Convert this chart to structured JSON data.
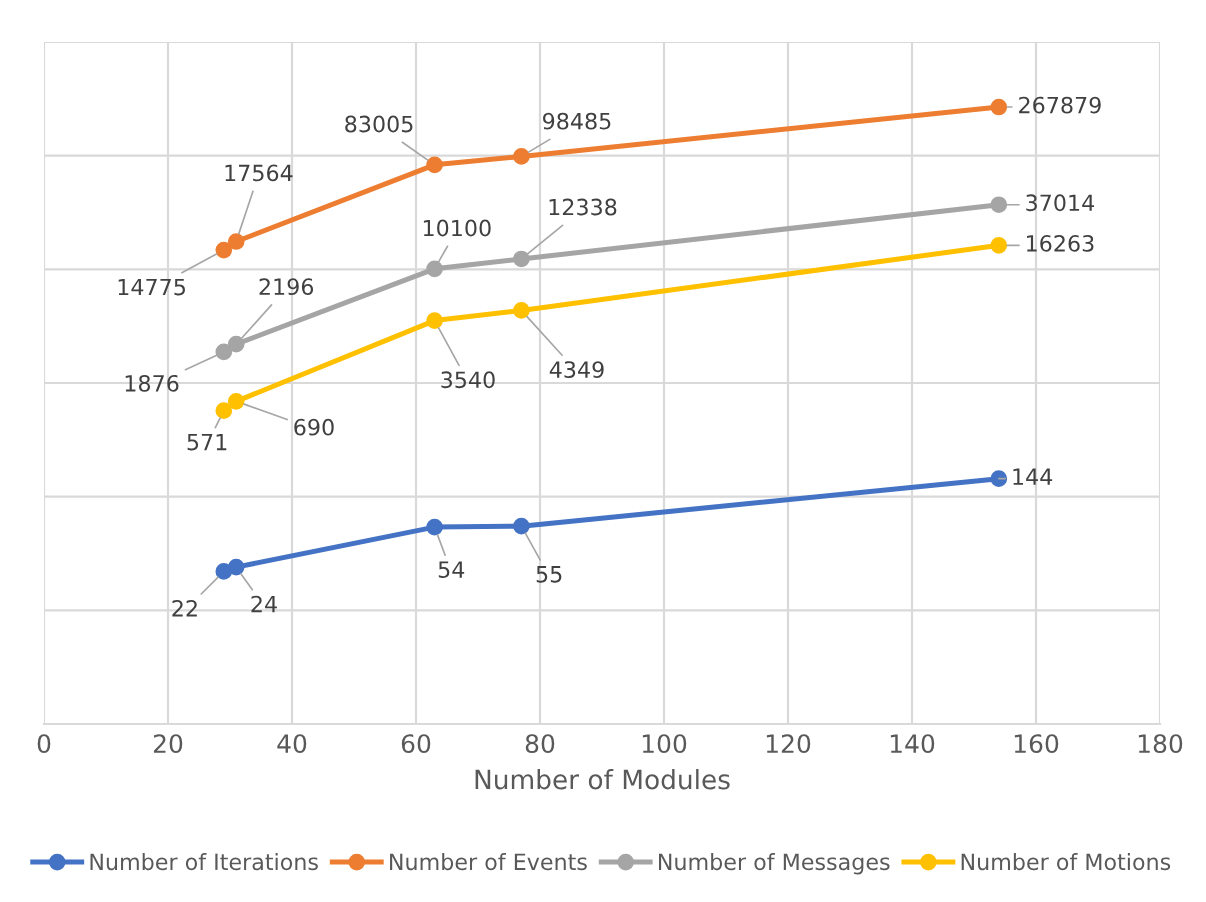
{
  "chart_data": {
    "type": "line",
    "xlabel": "Number of Modules",
    "x": [
      29,
      31,
      63,
      77,
      154
    ],
    "series": [
      {
        "name": "Number of Iterations",
        "color": "#4472c4",
        "values": [
          22,
          24,
          54,
          55,
          144
        ]
      },
      {
        "name": "Number of Events",
        "color": "#ed7d31",
        "values": [
          14775,
          17564,
          83005,
          98485,
          267879
        ]
      },
      {
        "name": "Number of Messages",
        "color": "#a5a5a5",
        "values": [
          1876,
          2196,
          10100,
          12338,
          37014
        ]
      },
      {
        "name": "Number of Motions",
        "color": "#ffc000",
        "values": [
          571,
          690,
          3540,
          4349,
          16263
        ]
      }
    ],
    "log": true,
    "xlim": [
      0,
      180
    ],
    "xticks": [
      0,
      20,
      40,
      60,
      80,
      100,
      120,
      140,
      160,
      180
    ],
    "ylim": [
      1,
      1000000
    ],
    "yticks": [
      {
        "value": 1,
        "label": null
      },
      {
        "value": 10,
        "label": null
      },
      {
        "value": 100,
        "label": null
      },
      {
        "value": 1000,
        "label": null
      },
      {
        "value": 10000,
        "label": null
      },
      {
        "value": 100000,
        "label": null
      },
      {
        "value": 1000000,
        "label": null
      }
    ],
    "tick_labels": "x",
    "grid": true,
    "legend": "bottom",
    "marker": "circle",
    "line_style": "solid",
    "data_labels": true
  }
}
